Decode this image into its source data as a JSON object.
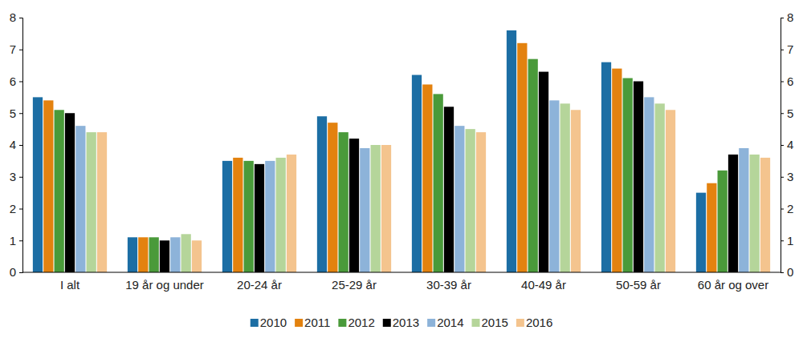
{
  "chart_data": {
    "type": "bar",
    "categories": [
      "I alt",
      "19 år og under",
      "20-24 år",
      "25-29 år",
      "30-39 år",
      "40-49 år",
      "50-59 år",
      "60 år og over"
    ],
    "series": [
      {
        "name": "2010",
        "color": "#1c6ea4",
        "values": [
          5.5,
          1.1,
          3.5,
          4.9,
          6.2,
          7.6,
          6.6,
          2.5
        ]
      },
      {
        "name": "2011",
        "color": "#e3820f",
        "values": [
          5.4,
          1.1,
          3.6,
          4.7,
          5.9,
          7.2,
          6.4,
          2.8
        ]
      },
      {
        "name": "2012",
        "color": "#4a9a3a",
        "values": [
          5.1,
          1.1,
          3.5,
          4.4,
          5.6,
          6.7,
          6.1,
          3.2
        ]
      },
      {
        "name": "2013",
        "color": "#000000",
        "values": [
          5.0,
          1.0,
          3.4,
          4.2,
          5.2,
          6.3,
          6.0,
          3.7
        ]
      },
      {
        "name": "2014",
        "color": "#8db3d9",
        "values": [
          4.6,
          1.1,
          3.5,
          3.9,
          4.6,
          5.4,
          5.5,
          3.9
        ]
      },
      {
        "name": "2015",
        "color": "#b5d59a",
        "values": [
          4.4,
          1.2,
          3.6,
          4.0,
          4.5,
          5.3,
          5.3,
          3.7
        ]
      },
      {
        "name": "2016",
        "color": "#f4c48e",
        "values": [
          4.4,
          1.0,
          3.7,
          4.0,
          4.4,
          5.1,
          5.1,
          3.6
        ]
      }
    ],
    "ylim": [
      0,
      8
    ],
    "yticks": [
      0,
      1,
      2,
      3,
      4,
      5,
      6,
      7,
      8
    ],
    "y2lim": [
      0,
      8
    ],
    "y2ticks": [
      0,
      1,
      2,
      3,
      4,
      5,
      6,
      7,
      8
    ],
    "grid": false,
    "legend": "bottom"
  }
}
